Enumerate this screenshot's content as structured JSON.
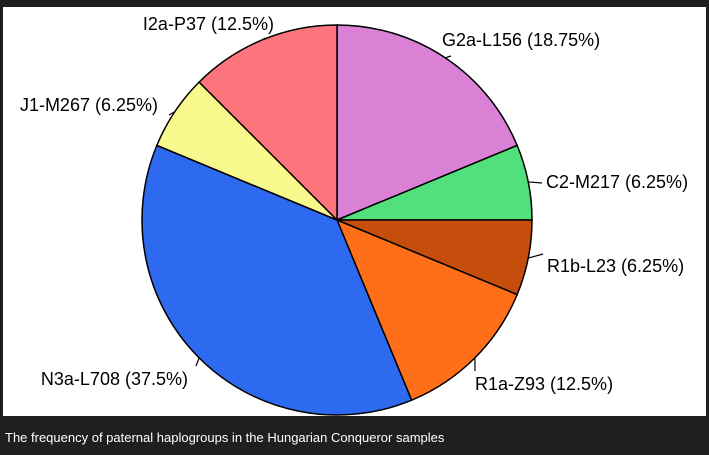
{
  "caption": "The frequency of paternal haplogroups in the Hungarian Conqueror samples",
  "chart_data": {
    "type": "pie",
    "start_angle_degrees": 90,
    "direction": "clockwise",
    "slices": [
      {
        "label": "G2a-L156 (18.75%)",
        "value": 18.75,
        "color": "#da81d6"
      },
      {
        "label": "C2-M217 (6.25%)",
        "value": 6.25,
        "color": "#52e07c"
      },
      {
        "label": "R1b-L23 (6.25%)",
        "value": 6.25,
        "color": "#c64e0c"
      },
      {
        "label": "R1a-Z93 (12.5%)",
        "value": 12.5,
        "color": "#ff6f19"
      },
      {
        "label": "N3a-L708 (37.5%)",
        "value": 37.5,
        "color": "#2e6af0"
      },
      {
        "label": "J1-M267 (6.25%)",
        "value": 6.25,
        "color": "#f8f88c"
      },
      {
        "label": "I2a-P37 (12.5%)",
        "value": 12.5,
        "color": "#fc747c"
      }
    ]
  }
}
